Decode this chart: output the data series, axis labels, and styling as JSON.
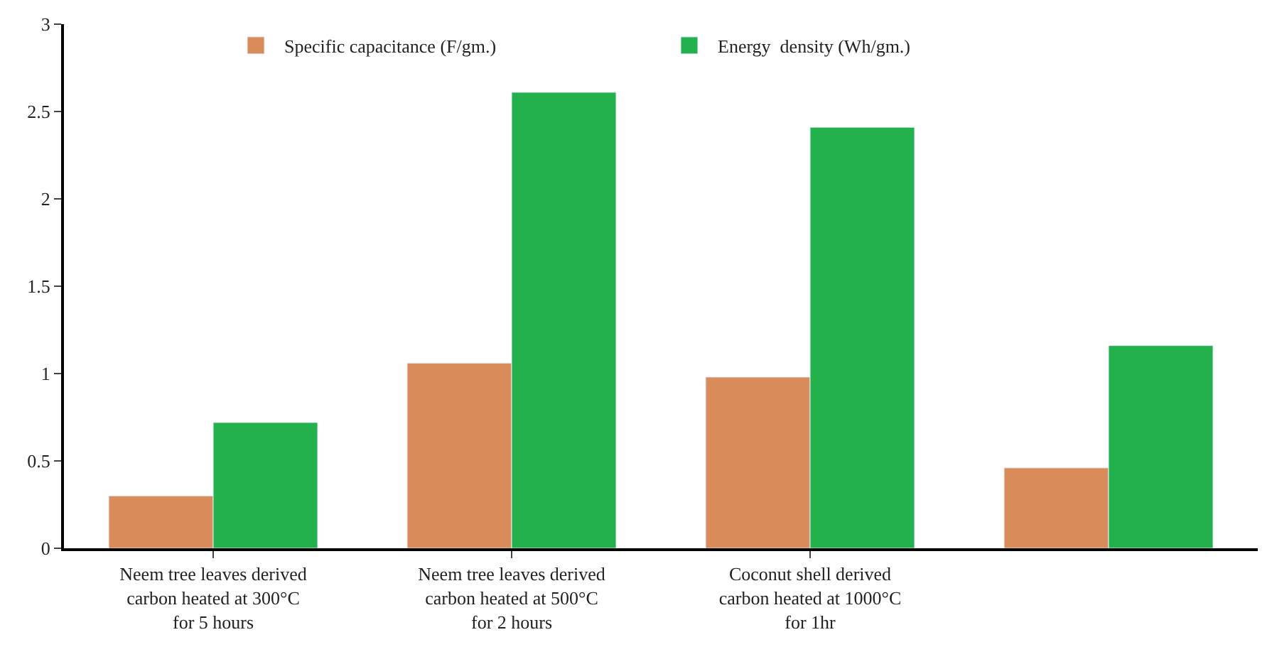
{
  "chart_data": {
    "type": "bar",
    "categories": [
      "Neem tree leaves derived\ncarbon heated at 300°C\nfor 5 hours",
      "Neem tree leaves derived\ncarbon heated at 500°C\nfor 2 hours",
      "Coconut shell derived\ncarbon heated at 1000°C\nfor 1hr",
      null
    ],
    "series": [
      {
        "name": "Specific capacitance (F/gm.)",
        "color": "#d98c5a",
        "values": [
          0.3,
          1.06,
          0.98,
          0.46
        ]
      },
      {
        "name": "Energy  density (Wh/gm.)",
        "color": "#22b14c",
        "values": [
          0.72,
          2.61,
          2.41,
          1.16
        ]
      }
    ],
    "ylim": [
      0,
      3
    ],
    "yticks": [
      0,
      0.5,
      1,
      1.5,
      2,
      2.5,
      3
    ],
    "legend": "top"
  }
}
